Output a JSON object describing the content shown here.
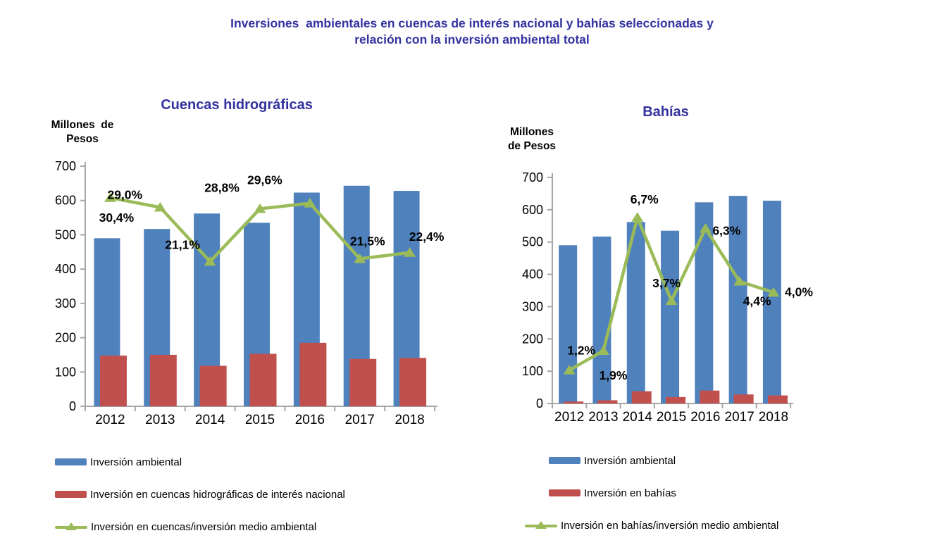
{
  "page_title": {
    "line1": "Inversiones  ambientales en cuencas de interés nacional y bahías seleccionadas y",
    "line2": "relación con la inversión ambiental total"
  },
  "colors": {
    "bar_blue": "#4F81BD",
    "bar_red": "#C0504D",
    "line_green": "#9BBB59",
    "title_blue": "#3232A0",
    "axis_gray": "#A6A6A6",
    "text_black": "#000000"
  },
  "chart_data": [
    {
      "id": "cuencas",
      "type": "bar",
      "title": "Cuencas hidrográficas",
      "ylabel": {
        "line1": "Millones  de",
        "line2": "Pesos"
      },
      "xlabel": "",
      "categories": [
        "2012",
        "2013",
        "2014",
        "2015",
        "2016",
        "2017",
        "2018"
      ],
      "ylim": [
        0,
        700
      ],
      "yticks": [
        0,
        100,
        200,
        300,
        400,
        500,
        600,
        700
      ],
      "grid": false,
      "legend_position": "bottom-left",
      "series": [
        {
          "name": "Inversión ambiental",
          "type": "bar",
          "color_key": "bar_blue",
          "values": [
            490,
            517,
            562,
            535,
            623,
            643,
            628
          ]
        },
        {
          "name": "Inversión en cuencas hidrográficas de interés nacional",
          "type": "bar",
          "color_key": "bar_red",
          "values": [
            148,
            150,
            118,
            153,
            185,
            138,
            141
          ]
        },
        {
          "name": "Inversión en cuencas/inversión medio ambiental",
          "type": "line",
          "color_key": "line_green",
          "values_pct": [
            30.4,
            29.0,
            21.1,
            28.8,
            29.6,
            21.5,
            22.4
          ],
          "point_labels": [
            "30,4%",
            "29,0%",
            "21,1%",
            "28,8%",
            "29,6%",
            "21,5%",
            "22,4%"
          ],
          "pct_to_primary_scale": 20,
          "label_offsets": [
            [
              9,
              28
            ],
            [
              -50,
              -18
            ],
            [
              -39,
              -24
            ],
            [
              -54,
              -30
            ],
            [
              -64,
              -33
            ],
            [
              11,
              -25
            ],
            [
              24,
              -23
            ]
          ]
        }
      ]
    },
    {
      "id": "bahias",
      "type": "bar",
      "title": "Bahías",
      "ylabel": {
        "line1": "Millones",
        "line2": "de Pesos"
      },
      "xlabel": "",
      "categories": [
        "2012",
        "2013",
        "2014",
        "2015",
        "2016",
        "2017",
        "2018"
      ],
      "ylim": [
        0,
        700
      ],
      "yticks": [
        0,
        100,
        200,
        300,
        400,
        500,
        600,
        700
      ],
      "grid": false,
      "legend_position": "bottom-left",
      "series": [
        {
          "name": "Inversión ambiental",
          "type": "bar",
          "color_key": "bar_blue",
          "values": [
            490,
            517,
            562,
            535,
            623,
            643,
            628
          ]
        },
        {
          "name": "Inversión en bahías",
          "type": "bar",
          "color_key": "bar_red",
          "values": [
            6,
            10,
            38,
            20,
            40,
            28,
            25
          ]
        },
        {
          "name": "Inversión en bahías/inversión medio ambiental",
          "type": "line",
          "color_key": "line_green",
          "values_pct": [
            1.2,
            1.9,
            6.7,
            3.7,
            6.3,
            4.4,
            4.0
          ],
          "point_labels": [
            "1,2%",
            "1,9%",
            "6,7%",
            "3,7%",
            "6,3%",
            "4,4%",
            "4,0%"
          ],
          "pct_to_primary_scale": 86,
          "label_offsets": [
            [
              17,
              -28
            ],
            [
              14,
              35
            ],
            [
              10,
              -26
            ],
            [
              -7,
              -25
            ],
            [
              30,
              3
            ],
            [
              25,
              28
            ],
            [
              36,
              -1
            ]
          ]
        }
      ]
    }
  ]
}
